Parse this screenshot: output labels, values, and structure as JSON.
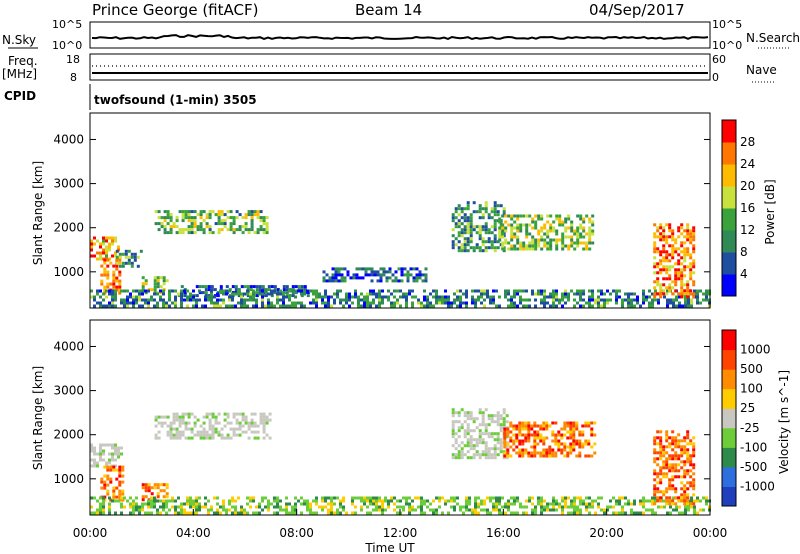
{
  "header": {
    "station": "Prince George (fitACF)",
    "beam": "Beam 14",
    "date": "04/Sep/2017"
  },
  "top_panels": {
    "nsky_label": "N.Sky",
    "nsearch_label": "N.Search",
    "nsky_ticks": [
      "10^5",
      "10^0"
    ],
    "freq_label_1": "Freq.",
    "freq_label_2": "[MHz]",
    "freq_ticks": [
      "18",
      "8"
    ],
    "nave_ticks": [
      "60",
      "0"
    ],
    "nave_label": "Nave",
    "cpid_label": "CPID",
    "cpid_text": "twofsound (1-min) 3505"
  },
  "chart_data": [
    {
      "type": "heatmap",
      "name": "power",
      "ylabel": "Slant Range [km]",
      "xlabel": "",
      "xlim": [
        0,
        24
      ],
      "ylim": [
        180,
        4600
      ],
      "yticks": [
        "4000",
        "3000",
        "2000",
        "1000"
      ],
      "colorbar_label": "Power [dB]",
      "colorbar_ticks": [
        "28",
        "24",
        "20",
        "16",
        "12",
        "8",
        "4"
      ],
      "colorbar_colors": [
        "#0000ff",
        "#1e4ea0",
        "#2f8a55",
        "#3aa23a",
        "#c8e13c",
        "#ffbb00",
        "#ff7700",
        "#ff0000"
      ],
      "regions": [
        {
          "x": [
            0.0,
            1.1
          ],
          "y": [
            1300,
            1800
          ],
          "level": 0.7
        },
        {
          "x": [
            0.4,
            1.2
          ],
          "y": [
            500,
            1300
          ],
          "level": 0.85
        },
        {
          "x": [
            1.0,
            2.0
          ],
          "y": [
            1100,
            1500
          ],
          "level": 0.35
        },
        {
          "x": [
            2.0,
            3.0
          ],
          "y": [
            550,
            900
          ],
          "level": 0.55
        },
        {
          "x": [
            2.5,
            6.8
          ],
          "y": [
            1900,
            2400
          ],
          "level": 0.45
        },
        {
          "x": [
            3.4,
            8.5
          ],
          "y": [
            450,
            700
          ],
          "level": 0.25
        },
        {
          "x": [
            9.0,
            13.0
          ],
          "y": [
            800,
            1100
          ],
          "level": 0.2
        },
        {
          "x": [
            0.0,
            24.0
          ],
          "y": [
            200,
            600
          ],
          "level": 0.3
        },
        {
          "x": [
            14.0,
            16.0
          ],
          "y": [
            1500,
            2600
          ],
          "level": 0.35
        },
        {
          "x": [
            15.8,
            19.5
          ],
          "y": [
            1500,
            2300
          ],
          "level": 0.5
        },
        {
          "x": [
            21.8,
            23.4
          ],
          "y": [
            400,
            2100
          ],
          "level": 0.8
        }
      ]
    },
    {
      "type": "heatmap",
      "name": "velocity",
      "ylabel": "Slant Range [km]",
      "xlabel": "Time UT",
      "xlim": [
        0,
        24
      ],
      "ylim": [
        180,
        4600
      ],
      "xticks": [
        "00:00",
        "04:00",
        "08:00",
        "12:00",
        "16:00",
        "20:00",
        "00:00"
      ],
      "yticks": [
        "4000",
        "3000",
        "2000",
        "1000"
      ],
      "colorbar_label": "Velocity [m s^-1]",
      "colorbar_ticks": [
        "1000",
        "500",
        "100",
        "25",
        "-25",
        "-100",
        "-500",
        "-1000"
      ],
      "colorbar_colors": [
        "#1f3fbf",
        "#2e6fdf",
        "#2e8a4a",
        "#6ccc3a",
        "#c8c8c0",
        "#ffcc00",
        "#ff8c00",
        "#ff4400",
        "#ff0000"
      ],
      "regions": [
        {
          "x": [
            0.0,
            1.2
          ],
          "y": [
            1300,
            1800
          ],
          "class": "gray"
        },
        {
          "x": [
            0.4,
            1.3
          ],
          "y": [
            500,
            1300
          ],
          "class": "orange"
        },
        {
          "x": [
            2.0,
            3.0
          ],
          "y": [
            550,
            900
          ],
          "class": "orange"
        },
        {
          "x": [
            2.5,
            7.0
          ],
          "y": [
            1900,
            2500
          ],
          "class": "gray"
        },
        {
          "x": [
            0.0,
            24.0
          ],
          "y": [
            200,
            600
          ],
          "class": "green"
        },
        {
          "x": [
            14.0,
            16.2
          ],
          "y": [
            1500,
            2600
          ],
          "class": "gray"
        },
        {
          "x": [
            16.0,
            19.5
          ],
          "y": [
            1500,
            2300
          ],
          "class": "orange"
        },
        {
          "x": [
            21.8,
            23.4
          ],
          "y": [
            400,
            2100
          ],
          "class": "orange"
        }
      ]
    }
  ]
}
